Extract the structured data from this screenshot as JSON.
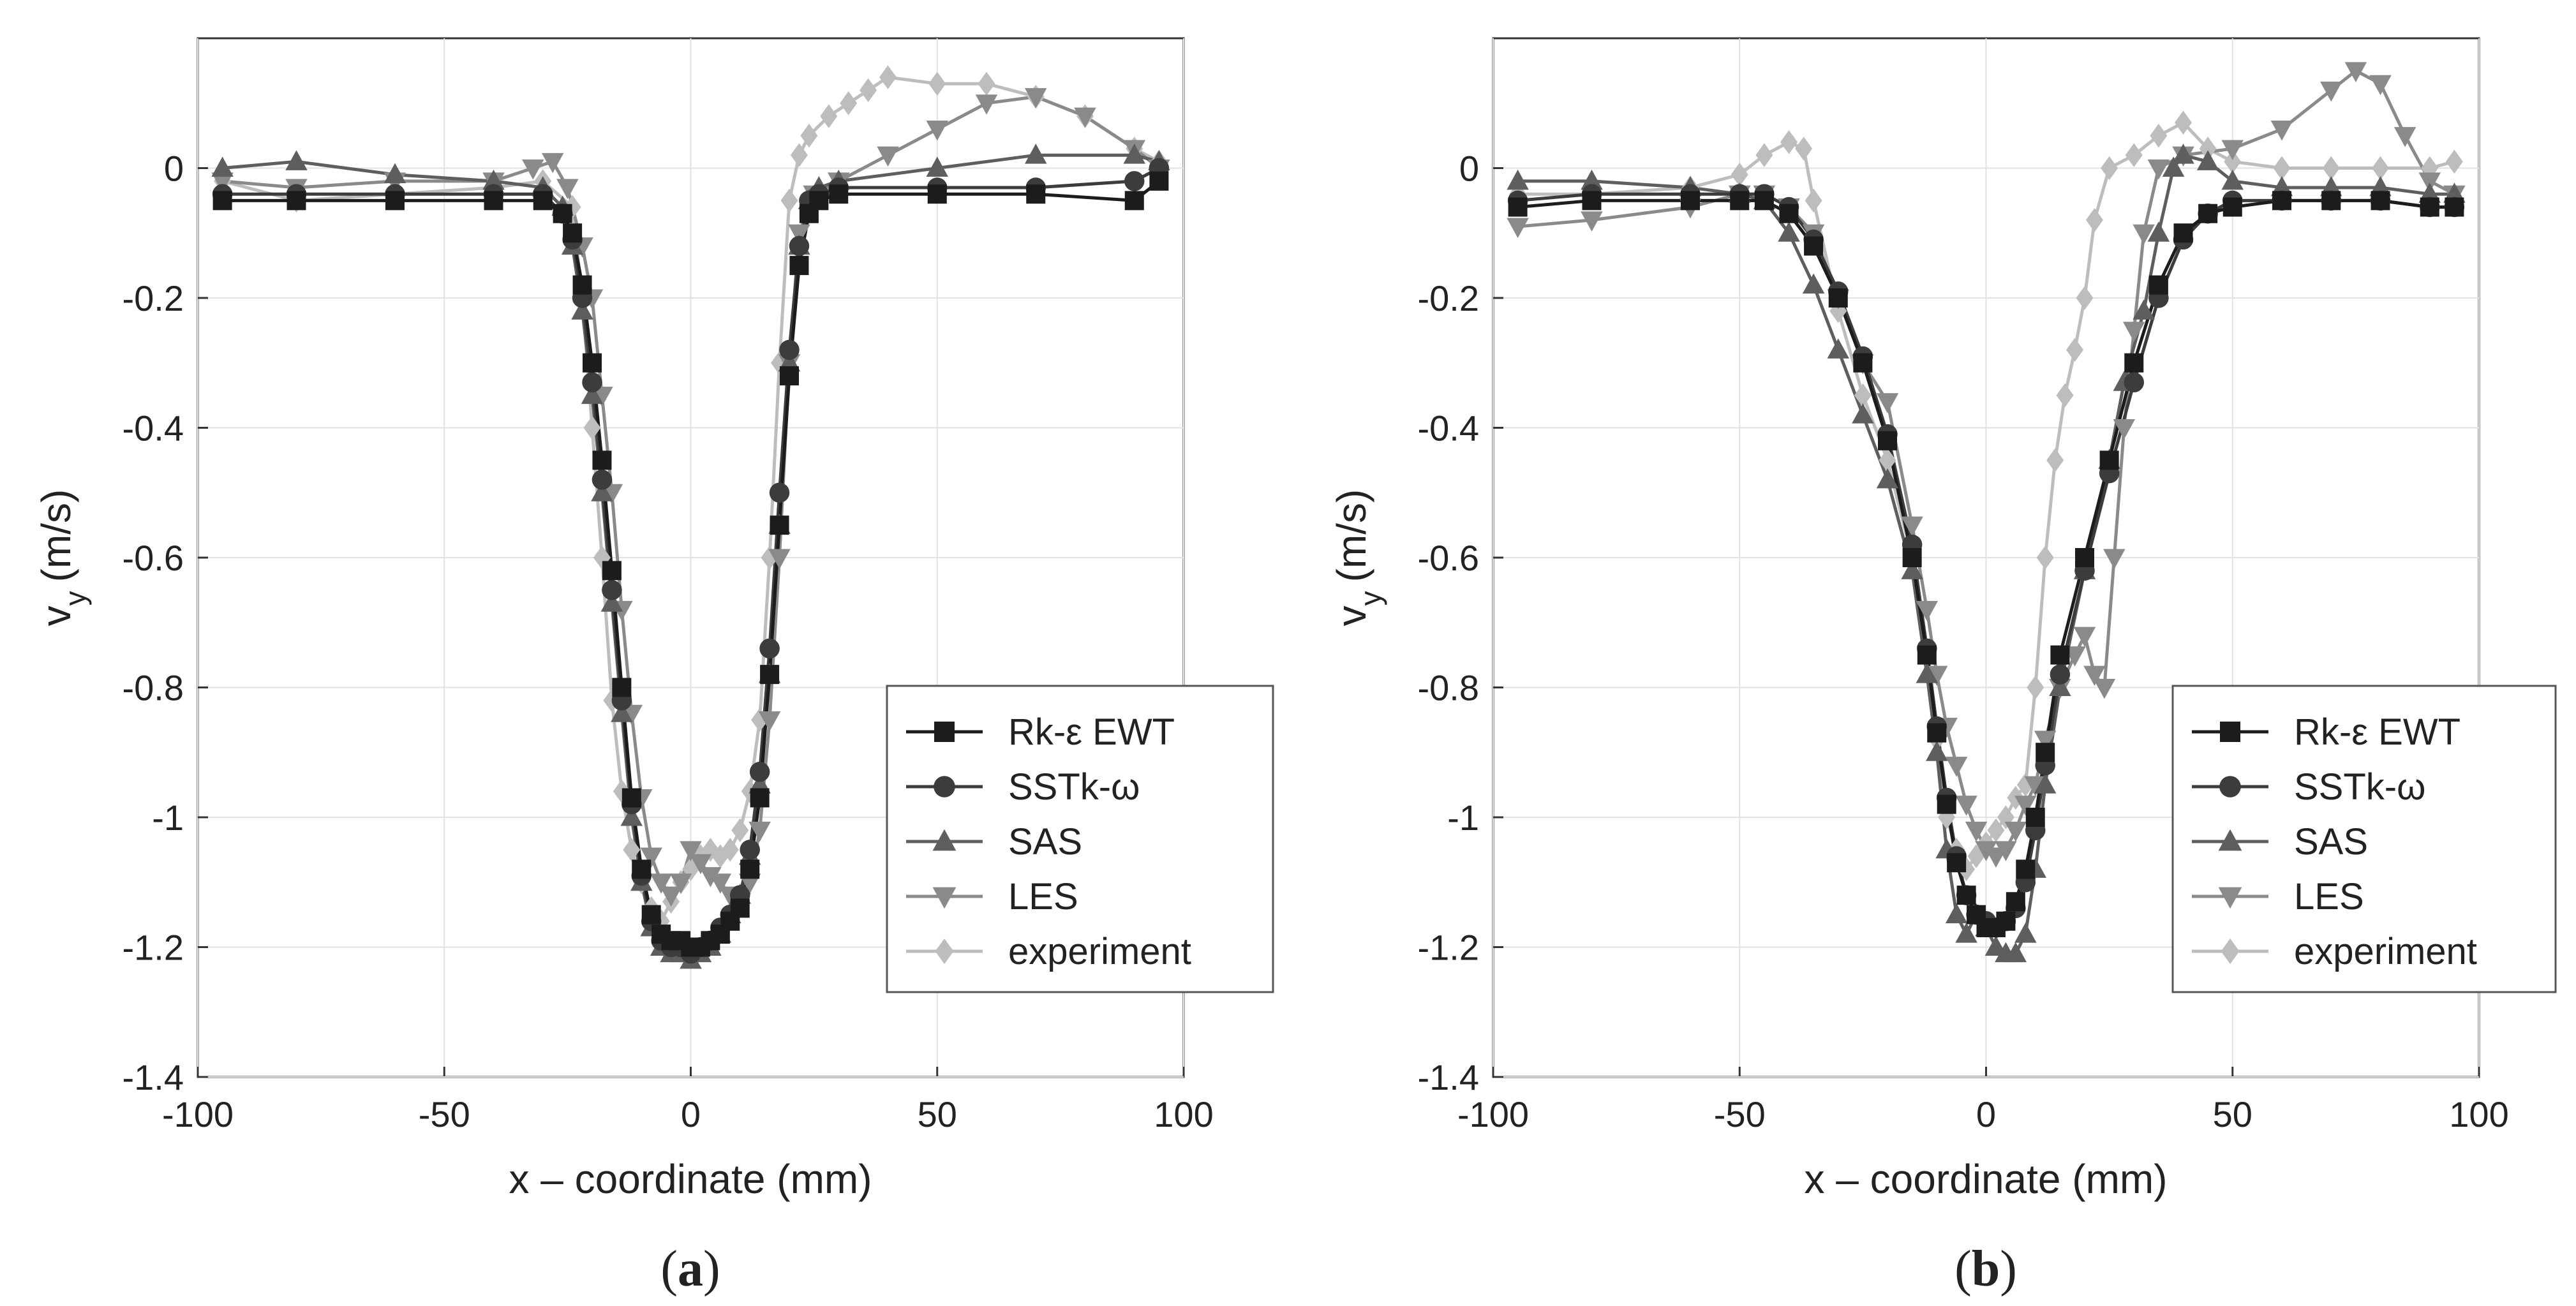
{
  "chart_data": [
    {
      "type": "line",
      "panel_label": "a",
      "xlabel": "x – coordinate (mm)",
      "ylabel": "v",
      "ylabel_sub": "y",
      "ylabel_unit": "(m/s)",
      "xlim": [
        -100,
        100
      ],
      "ylim": [
        -1.4,
        0.2
      ],
      "x_ticks": [
        -100,
        -50,
        0,
        50,
        100
      ],
      "y_ticks": [
        0,
        -0.2,
        -0.4,
        -0.6,
        -0.8,
        -1,
        -1.2,
        -1.4
      ],
      "grid": true,
      "legend_position": "lower-right",
      "series": [
        {
          "name": "Rk-ε EWT",
          "color": "#1c1c1c",
          "marker": "square",
          "x": [
            -95,
            -80,
            -60,
            -40,
            -30,
            -26,
            -24,
            -22,
            -20,
            -18,
            -16,
            -14,
            -12,
            -10,
            -8,
            -6,
            -4,
            -2,
            0,
            2,
            4,
            6,
            8,
            10,
            12,
            14,
            16,
            18,
            20,
            22,
            24,
            26,
            30,
            50,
            70,
            90,
            95
          ],
          "y": [
            -0.05,
            -0.05,
            -0.05,
            -0.05,
            -0.05,
            -0.07,
            -0.1,
            -0.18,
            -0.3,
            -0.45,
            -0.62,
            -0.8,
            -0.97,
            -1.08,
            -1.15,
            -1.18,
            -1.19,
            -1.19,
            -1.2,
            -1.2,
            -1.19,
            -1.18,
            -1.16,
            -1.14,
            -1.08,
            -0.97,
            -0.78,
            -0.55,
            -0.32,
            -0.15,
            -0.07,
            -0.05,
            -0.04,
            -0.04,
            -0.04,
            -0.05,
            -0.02
          ]
        },
        {
          "name": "SSTk-ω",
          "color": "#3c3c3c",
          "marker": "circle",
          "x": [
            -95,
            -80,
            -60,
            -40,
            -30,
            -26,
            -24,
            -22,
            -20,
            -18,
            -16,
            -14,
            -12,
            -10,
            -8,
            -6,
            -4,
            -2,
            0,
            2,
            4,
            6,
            8,
            10,
            12,
            14,
            16,
            18,
            20,
            22,
            24,
            26,
            30,
            50,
            70,
            90,
            95
          ],
          "y": [
            -0.04,
            -0.04,
            -0.04,
            -0.04,
            -0.04,
            -0.07,
            -0.11,
            -0.2,
            -0.33,
            -0.48,
            -0.65,
            -0.82,
            -0.98,
            -1.09,
            -1.16,
            -1.19,
            -1.2,
            -1.2,
            -1.21,
            -1.2,
            -1.19,
            -1.17,
            -1.15,
            -1.12,
            -1.05,
            -0.93,
            -0.74,
            -0.5,
            -0.28,
            -0.12,
            -0.05,
            -0.04,
            -0.03,
            -0.03,
            -0.03,
            -0.02,
            0.0
          ]
        },
        {
          "name": "SAS",
          "color": "#5e5e5e",
          "marker": "triangle-up",
          "x": [
            -95,
            -80,
            -60,
            -40,
            -30,
            -26,
            -24,
            -22,
            -20,
            -18,
            -16,
            -14,
            -12,
            -10,
            -8,
            -6,
            -4,
            -2,
            0,
            2,
            4,
            6,
            8,
            10,
            12,
            14,
            16,
            18,
            20,
            22,
            24,
            26,
            30,
            50,
            70,
            90,
            95
          ],
          "y": [
            0.0,
            0.01,
            -0.01,
            -0.02,
            -0.03,
            -0.06,
            -0.12,
            -0.22,
            -0.35,
            -0.5,
            -0.67,
            -0.84,
            -1.0,
            -1.1,
            -1.17,
            -1.2,
            -1.21,
            -1.21,
            -1.22,
            -1.21,
            -1.2,
            -1.18,
            -1.15,
            -1.12,
            -1.06,
            -0.95,
            -0.78,
            -0.55,
            -0.3,
            -0.12,
            -0.05,
            -0.03,
            -0.02,
            0.0,
            0.02,
            0.02,
            0.01
          ]
        },
        {
          "name": "LES",
          "color": "#8a8a8a",
          "marker": "triangle-down",
          "x": [
            -95,
            -80,
            -60,
            -40,
            -32,
            -28,
            -25,
            -22,
            -20,
            -18,
            -16,
            -14,
            -12,
            -10,
            -8,
            -6,
            -4,
            -2,
            0,
            2,
            4,
            6,
            8,
            10,
            12,
            14,
            16,
            18,
            20,
            22,
            25,
            30,
            40,
            50,
            60,
            70,
            80,
            90,
            95
          ],
          "y": [
            -0.02,
            -0.03,
            -0.02,
            -0.02,
            0.0,
            0.01,
            -0.03,
            -0.12,
            -0.2,
            -0.35,
            -0.5,
            -0.68,
            -0.84,
            -0.97,
            -1.06,
            -1.1,
            -1.12,
            -1.1,
            -1.05,
            -1.07,
            -1.09,
            -1.1,
            -1.12,
            -1.13,
            -1.1,
            -1.02,
            -0.85,
            -0.6,
            -0.3,
            -0.1,
            -0.04,
            -0.02,
            0.02,
            0.06,
            0.1,
            0.11,
            0.08,
            0.03,
            0.0
          ]
        },
        {
          "name": "experiment",
          "color": "#bdbdbd",
          "marker": "diamond",
          "x": [
            -95,
            -80,
            -60,
            -40,
            -30,
            -24,
            -22,
            -20,
            -18,
            -16,
            -14,
            -12,
            -10,
            -8,
            -6,
            -4,
            -2,
            0,
            2,
            4,
            6,
            8,
            10,
            12,
            14,
            16,
            18,
            20,
            22,
            24,
            28,
            32,
            36,
            40,
            50,
            60,
            70,
            80,
            90,
            95
          ],
          "y": [
            -0.02,
            -0.05,
            -0.04,
            -0.03,
            -0.02,
            -0.06,
            -0.2,
            -0.4,
            -0.6,
            -0.82,
            -0.96,
            -1.05,
            -1.1,
            -1.14,
            -1.16,
            -1.13,
            -1.1,
            -1.08,
            -1.06,
            -1.05,
            -1.06,
            -1.05,
            -1.02,
            -0.96,
            -0.85,
            -0.6,
            -0.3,
            -0.05,
            0.02,
            0.05,
            0.08,
            0.1,
            0.12,
            0.14,
            0.13,
            0.13,
            0.11,
            0.08,
            0.03,
            0.01
          ]
        }
      ]
    },
    {
      "type": "line",
      "panel_label": "b",
      "xlabel": "x – coordinate (mm)",
      "ylabel": "v",
      "ylabel_sub": "y",
      "ylabel_unit": "(m/s)",
      "xlim": [
        -100,
        100
      ],
      "ylim": [
        -1.4,
        0.2
      ],
      "x_ticks": [
        -100,
        -50,
        0,
        50,
        100
      ],
      "y_ticks": [
        0,
        -0.2,
        -0.4,
        -0.6,
        -0.8,
        -1,
        -1.2,
        -1.4
      ],
      "grid": true,
      "legend_position": "lower-right",
      "series": [
        {
          "name": "Rk-ε EWT",
          "color": "#1c1c1c",
          "marker": "square",
          "x": [
            -95,
            -80,
            -60,
            -50,
            -45,
            -40,
            -35,
            -30,
            -25,
            -20,
            -15,
            -12,
            -10,
            -8,
            -6,
            -4,
            -2,
            0,
            2,
            4,
            6,
            8,
            10,
            12,
            15,
            20,
            25,
            30,
            35,
            40,
            45,
            50,
            60,
            70,
            80,
            90,
            95
          ],
          "y": [
            -0.06,
            -0.05,
            -0.05,
            -0.05,
            -0.05,
            -0.07,
            -0.12,
            -0.2,
            -0.3,
            -0.42,
            -0.6,
            -0.75,
            -0.87,
            -0.98,
            -1.07,
            -1.12,
            -1.15,
            -1.17,
            -1.17,
            -1.16,
            -1.13,
            -1.08,
            -1.0,
            -0.9,
            -0.75,
            -0.6,
            -0.45,
            -0.3,
            -0.18,
            -0.1,
            -0.07,
            -0.06,
            -0.05,
            -0.05,
            -0.05,
            -0.06,
            -0.06
          ]
        },
        {
          "name": "SSTk-ω",
          "color": "#3c3c3c",
          "marker": "circle",
          "x": [
            -95,
            -80,
            -60,
            -50,
            -45,
            -40,
            -35,
            -30,
            -25,
            -20,
            -15,
            -12,
            -10,
            -8,
            -6,
            -4,
            -2,
            0,
            2,
            4,
            6,
            8,
            10,
            12,
            15,
            20,
            25,
            30,
            35,
            40,
            45,
            50,
            60,
            70,
            80,
            90,
            95
          ],
          "y": [
            -0.05,
            -0.04,
            -0.04,
            -0.04,
            -0.04,
            -0.06,
            -0.11,
            -0.19,
            -0.29,
            -0.41,
            -0.58,
            -0.74,
            -0.86,
            -0.97,
            -1.06,
            -1.12,
            -1.15,
            -1.16,
            -1.17,
            -1.16,
            -1.14,
            -1.1,
            -1.02,
            -0.92,
            -0.78,
            -0.62,
            -0.47,
            -0.33,
            -0.2,
            -0.11,
            -0.07,
            -0.05,
            -0.05,
            -0.05,
            -0.05,
            -0.06,
            -0.06
          ]
        },
        {
          "name": "SAS",
          "color": "#5e5e5e",
          "marker": "triangle-up",
          "x": [
            -95,
            -80,
            -60,
            -50,
            -45,
            -40,
            -35,
            -30,
            -25,
            -20,
            -15,
            -12,
            -10,
            -8,
            -6,
            -4,
            -2,
            0,
            2,
            4,
            6,
            8,
            10,
            12,
            15,
            20,
            25,
            28,
            32,
            35,
            38,
            40,
            45,
            50,
            60,
            70,
            80,
            90,
            95
          ],
          "y": [
            -0.02,
            -0.02,
            -0.03,
            -0.04,
            -0.05,
            -0.1,
            -0.18,
            -0.28,
            -0.38,
            -0.48,
            -0.62,
            -0.78,
            -0.9,
            -1.05,
            -1.15,
            -1.18,
            -1.15,
            -1.17,
            -1.2,
            -1.21,
            -1.21,
            -1.18,
            -1.08,
            -0.95,
            -0.8,
            -0.62,
            -0.45,
            -0.33,
            -0.22,
            -0.1,
            0.0,
            0.02,
            0.01,
            -0.02,
            -0.03,
            -0.03,
            -0.03,
            -0.04,
            -0.04
          ]
        },
        {
          "name": "LES",
          "color": "#8a8a8a",
          "marker": "triangle-down",
          "x": [
            -95,
            -80,
            -60,
            -50,
            -45,
            -40,
            -35,
            -30,
            -25,
            -20,
            -15,
            -12,
            -10,
            -8,
            -6,
            -4,
            -2,
            0,
            2,
            4,
            6,
            8,
            10,
            12,
            15,
            18,
            20,
            22,
            24,
            26,
            28,
            30,
            32,
            35,
            40,
            50,
            60,
            70,
            75,
            80,
            85,
            90,
            95
          ],
          "y": [
            -0.09,
            -0.08,
            -0.06,
            -0.04,
            -0.04,
            -0.06,
            -0.1,
            -0.2,
            -0.3,
            -0.36,
            -0.55,
            -0.68,
            -0.78,
            -0.86,
            -0.92,
            -0.98,
            -1.02,
            -1.05,
            -1.06,
            -1.05,
            -1.02,
            -0.98,
            -0.95,
            -0.88,
            -0.8,
            -0.75,
            -0.72,
            -0.78,
            -0.8,
            -0.6,
            -0.4,
            -0.25,
            -0.1,
            0.0,
            0.02,
            0.03,
            0.06,
            0.12,
            0.15,
            0.13,
            0.05,
            -0.02,
            -0.04
          ]
        },
        {
          "name": "experiment",
          "color": "#bdbdbd",
          "marker": "diamond",
          "x": [
            -95,
            -80,
            -60,
            -50,
            -45,
            -40,
            -37,
            -35,
            -30,
            -25,
            -20,
            -15,
            -12,
            -10,
            -8,
            -6,
            -4,
            -2,
            0,
            2,
            4,
            6,
            8,
            10,
            12,
            14,
            16,
            18,
            20,
            22,
            25,
            30,
            35,
            40,
            45,
            50,
            60,
            70,
            80,
            90,
            95
          ],
          "y": [
            -0.04,
            -0.04,
            -0.03,
            -0.01,
            0.02,
            0.04,
            0.03,
            -0.05,
            -0.22,
            -0.35,
            -0.45,
            -0.6,
            -0.75,
            -0.88,
            -1.0,
            -1.05,
            -1.08,
            -1.06,
            -1.04,
            -1.02,
            -1.0,
            -0.97,
            -0.95,
            -0.8,
            -0.6,
            -0.45,
            -0.35,
            -0.28,
            -0.2,
            -0.08,
            0.0,
            0.02,
            0.05,
            0.07,
            0.03,
            0.01,
            0.0,
            0.0,
            0.0,
            0.0,
            0.01
          ]
        }
      ]
    }
  ]
}
